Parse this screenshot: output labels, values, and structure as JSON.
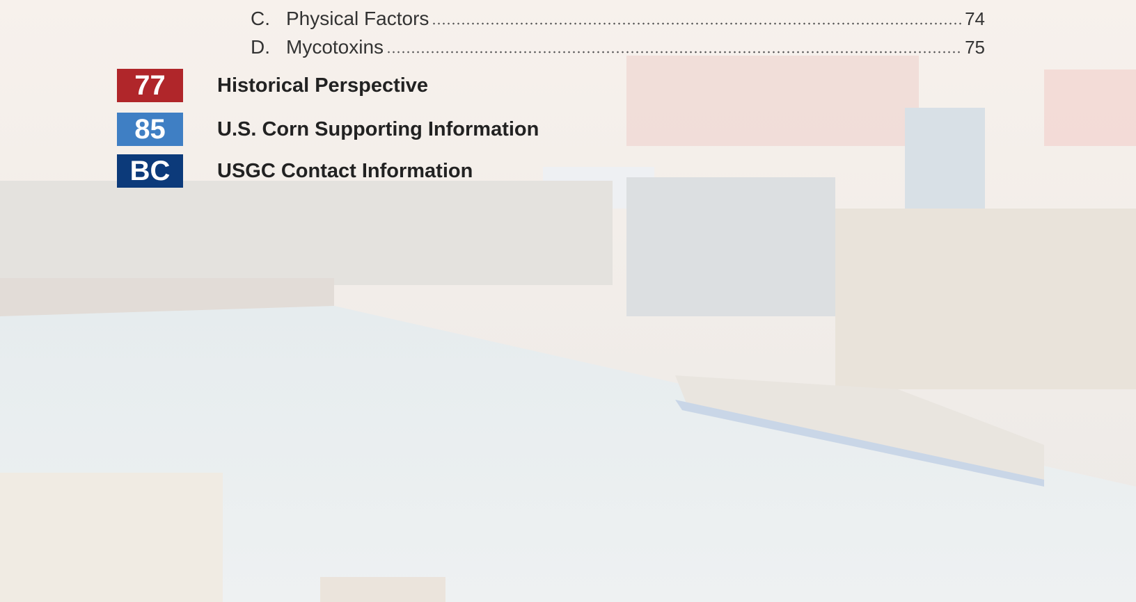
{
  "toc": {
    "subentries": [
      {
        "letter": "C.",
        "title": "Physical Factors",
        "page": 74
      },
      {
        "letter": "D.",
        "title": "Mycotoxins",
        "page": 75
      }
    ],
    "sections": [
      {
        "badge": 77,
        "title": "Historical Perspective",
        "color": "#b0262a"
      },
      {
        "badge": 85,
        "title": "U.S. Corn Supporting Information",
        "color": "#3f7fc4"
      },
      {
        "badge": "BC",
        "title": "USGC Contact Information",
        "color": "#0c3a7a"
      }
    ]
  }
}
